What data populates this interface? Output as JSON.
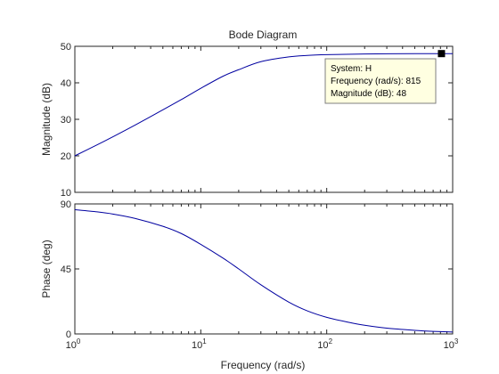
{
  "title": "Bode Diagram",
  "colors": {
    "line": "#0000a0",
    "axes": "#262626",
    "tip_bg": "#ffffe1",
    "tip_border": "#7f7f7f",
    "marker": "#000000",
    "background": "#ffffff"
  },
  "chart_data": [
    {
      "type": "line",
      "panel": "magnitude",
      "title": "Bode Diagram",
      "xlabel": "",
      "ylabel": "Magnitude (dB)",
      "x_scale": "log",
      "xlim": [
        1,
        1000
      ],
      "ylim": [
        10,
        50
      ],
      "y_ticks": [
        10,
        20,
        30,
        40,
        50
      ],
      "grid": false,
      "series": [
        {
          "x": [
            1,
            1.5,
            2,
            3,
            5,
            7,
            10,
            15,
            20,
            30,
            50,
            70,
            100,
            200,
            500,
            815,
            1000
          ],
          "y": [
            20.0,
            23.0,
            25.2,
            28.4,
            32.6,
            35.4,
            38.5,
            41.8,
            43.6,
            45.8,
            47.1,
            47.5,
            47.7,
            47.9,
            48.0,
            48.0,
            48.0
          ]
        }
      ],
      "data_tip": {
        "x": 815,
        "y": 48,
        "lines": [
          "System: H",
          "Frequency (rad/s): 815",
          "Magnitude (dB): 48"
        ]
      }
    },
    {
      "type": "line",
      "panel": "phase",
      "xlabel": "Frequency  (rad/s)",
      "ylabel": "Phase (deg)",
      "x_scale": "log",
      "xlim": [
        1,
        1000
      ],
      "ylim": [
        0,
        90
      ],
      "y_ticks": [
        0,
        45,
        90
      ],
      "x_ticks": [
        1,
        10,
        100,
        1000
      ],
      "x_tick_labels": [
        {
          "base": "10",
          "exp": "0"
        },
        {
          "base": "10",
          "exp": "1"
        },
        {
          "base": "10",
          "exp": "2"
        },
        {
          "base": "10",
          "exp": "3"
        }
      ],
      "grid": false,
      "series": [
        {
          "x": [
            1,
            1.5,
            2,
            3,
            5,
            7,
            10,
            15,
            20,
            30,
            50,
            70,
            100,
            150,
            200,
            300,
            500,
            700,
            1000
          ],
          "y": [
            86.0,
            84.5,
            83.0,
            80.0,
            74.5,
            69.5,
            62.0,
            52.5,
            45.0,
            34.0,
            22.0,
            16.0,
            11.5,
            8.0,
            6.0,
            4.0,
            2.5,
            1.8,
            1.3
          ]
        }
      ]
    }
  ]
}
